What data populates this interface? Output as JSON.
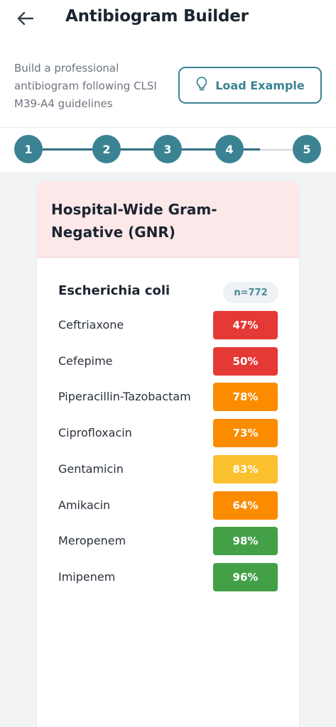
{
  "header": {
    "title": "Antibiogram Builder",
    "subtitle": "Build a professional antibiogram following CLSI M39-A4 guidelines",
    "load_example_label": "Load Example"
  },
  "stepper": {
    "current_step": 4,
    "steps": [
      "1",
      "2",
      "3",
      "4",
      "5"
    ]
  },
  "card": {
    "title": "Hospital-Wide Gram-Negative (GNR)",
    "organism": {
      "name": "Escherichia coli",
      "n_label": "n=772"
    },
    "drugs": [
      {
        "name": "Ceftriaxone",
        "value": "47%",
        "color": "#e53935"
      },
      {
        "name": "Cefepime",
        "value": "50%",
        "color": "#e53935"
      },
      {
        "name": "Piperacillin-Tazobactam",
        "value": "78%",
        "color": "#fb8c00"
      },
      {
        "name": "Ciprofloxacin",
        "value": "73%",
        "color": "#fb8c00"
      },
      {
        "name": "Gentamicin",
        "value": "83%",
        "color": "#fbc02d"
      },
      {
        "name": "Amikacin",
        "value": "64%",
        "color": "#fb8c00"
      },
      {
        "name": "Meropenem",
        "value": "98%",
        "color": "#43a047"
      },
      {
        "name": "Imipenem",
        "value": "96%",
        "color": "#43a047"
      }
    ]
  },
  "colors": {
    "accent": "#3b8393",
    "card_header_bg": "#fce8e8"
  }
}
